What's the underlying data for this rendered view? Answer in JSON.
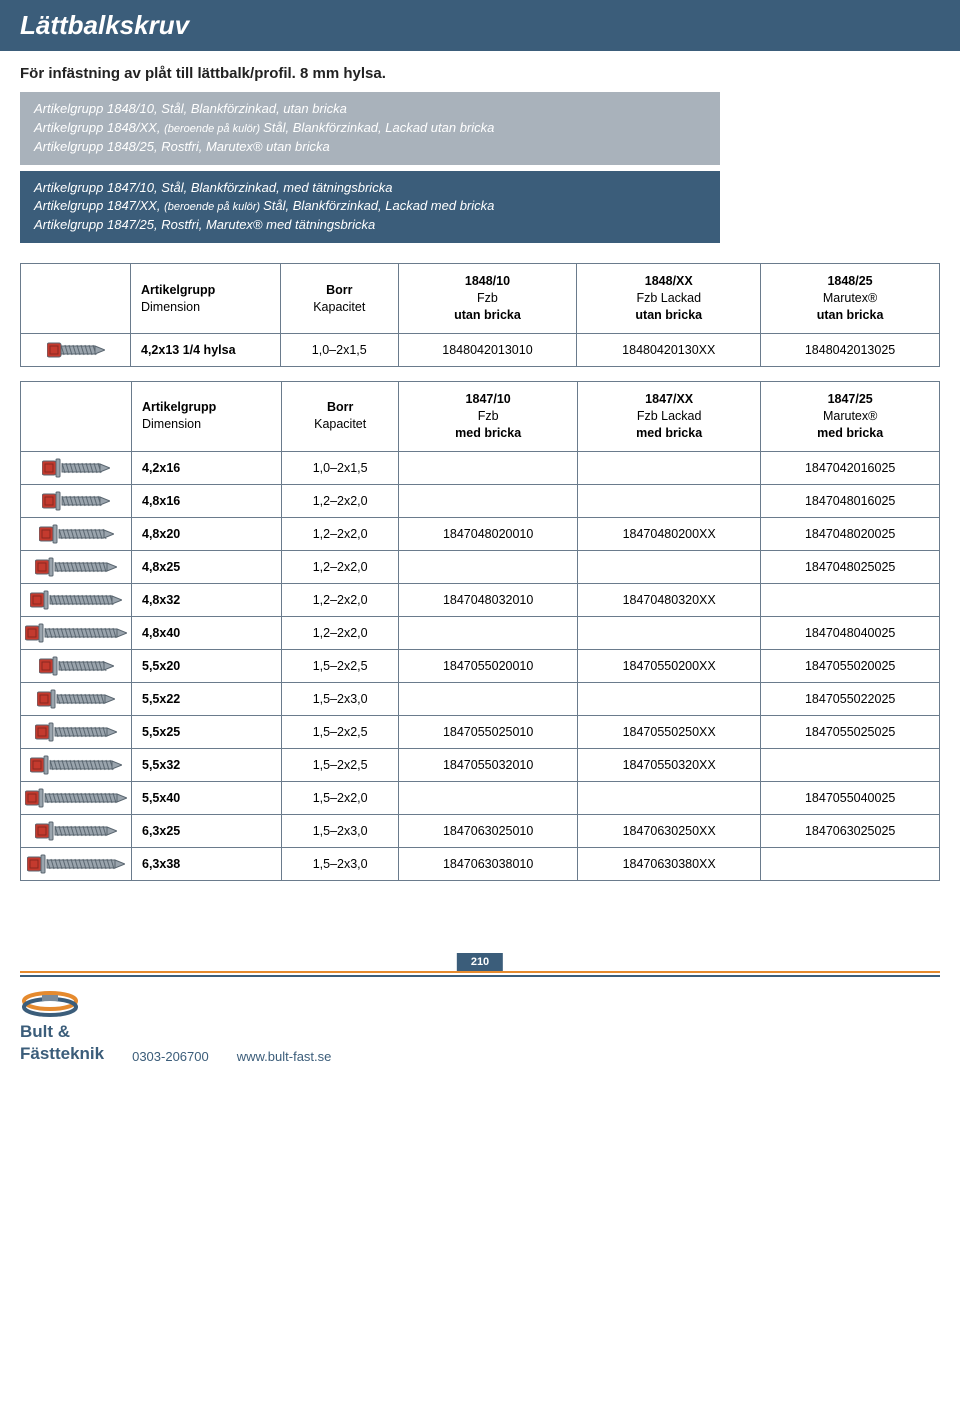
{
  "header": {
    "title": "Lättbalkskruv"
  },
  "subtitle": "För infästning av plåt till lättbalk/profil. 8 mm hylsa.",
  "box_grey": {
    "line1": "Artikelgrupp 1848/10, Stål, Blankförzinkad, utan bricka",
    "line2a": "Artikelgrupp 1848/XX, ",
    "line2b": "(beroende på kulör) ",
    "line2c": "Stål, Blankförzinkad, Lackad utan bricka",
    "line3": "Artikelgrupp 1848/25, Rostfri, Marutex® utan bricka"
  },
  "box_blue": {
    "line1": "Artikelgrupp 1847/10, Stål, Blankförzinkad, med tätningsbricka",
    "line2a": "Artikelgrupp 1847/XX, ",
    "line2b": "(beroende på kulör) ",
    "line2c": "Stål, Blankförzinkad, Lackad med bricka",
    "line3": "Artikelgrupp 1847/25, Rostfri, Marutex® med tätningsbricka"
  },
  "table1": {
    "headers": {
      "c1a": "Artikelgrupp",
      "c1b": "Dimension",
      "c2a": "Borr",
      "c2b": "Kapacitet",
      "c3a": "1848/10",
      "c3b": "Fzb",
      "c3c": "utan bricka",
      "c4a": "1848/XX",
      "c4b": "Fzb Lackad",
      "c4c": "utan bricka",
      "c5a": "1848/25",
      "c5b": "Marutex®",
      "c5c": "utan bricka"
    },
    "rows": [
      {
        "screw_len": 44,
        "washer": false,
        "dim": "4,2x13 1/4 hylsa",
        "cap": "1,0–2x1,5",
        "a": "1848042013010",
        "b": "18480420130XX",
        "c": "1848042013025"
      }
    ]
  },
  "table2": {
    "headers": {
      "c1a": "Artikelgrupp",
      "c1b": "Dimension",
      "c2a": "Borr",
      "c2b": "Kapacitet",
      "c3a": "1847/10",
      "c3b": "Fzb",
      "c3c": "med bricka",
      "c4a": "1847/XX",
      "c4b": "Fzb Lackad",
      "c4c": "med bricka",
      "c5a": "1847/25",
      "c5b": "Marutex®",
      "c5c": "med bricka"
    },
    "rows": [
      {
        "screw_len": 48,
        "washer": true,
        "dim": "4,2x16",
        "cap": "1,0–2x1,5",
        "a": "",
        "b": "",
        "c": "1847042016025"
      },
      {
        "screw_len": 48,
        "washer": true,
        "dim": "4,8x16",
        "cap": "1,2–2x2,0",
        "a": "",
        "b": "",
        "c": "1847048016025"
      },
      {
        "screw_len": 55,
        "washer": true,
        "dim": "4,8x20",
        "cap": "1,2–2x2,0",
        "a": "1847048020010",
        "b": "18470480200XX",
        "c": "1847048020025"
      },
      {
        "screw_len": 62,
        "washer": true,
        "dim": "4,8x25",
        "cap": "1,2–2x2,0",
        "a": "",
        "b": "",
        "c": "1847048025025"
      },
      {
        "screw_len": 72,
        "washer": true,
        "dim": "4,8x32",
        "cap": "1,2–2x2,0",
        "a": "1847048032010",
        "b": "18470480320XX",
        "c": ""
      },
      {
        "screw_len": 82,
        "washer": true,
        "dim": "4,8x40",
        "cap": "1,2–2x2,0",
        "a": "",
        "b": "",
        "c": "1847048040025"
      },
      {
        "screw_len": 55,
        "washer": true,
        "dim": "5,5x20",
        "cap": "1,5–2x2,5",
        "a": "1847055020010",
        "b": "18470550200XX",
        "c": "1847055020025"
      },
      {
        "screw_len": 58,
        "washer": true,
        "dim": "5,5x22",
        "cap": "1,5–2x3,0",
        "a": "",
        "b": "",
        "c": "1847055022025"
      },
      {
        "screw_len": 62,
        "washer": true,
        "dim": "5,5x25",
        "cap": "1,5–2x2,5",
        "a": "1847055025010",
        "b": "18470550250XX",
        "c": "1847055025025"
      },
      {
        "screw_len": 72,
        "washer": true,
        "dim": "5,5x32",
        "cap": "1,5–2x2,5",
        "a": "1847055032010",
        "b": "18470550320XX",
        "c": ""
      },
      {
        "screw_len": 82,
        "washer": true,
        "dim": "5,5x40",
        "cap": "1,5–2x2,0",
        "a": "",
        "b": "",
        "c": "1847055040025"
      },
      {
        "screw_len": 62,
        "washer": true,
        "dim": "6,3x25",
        "cap": "1,5–2x3,0",
        "a": "1847063025010",
        "b": "18470630250XX",
        "c": "1847063025025"
      },
      {
        "screw_len": 78,
        "washer": true,
        "dim": "6,3x38",
        "cap": "1,5–2x3,0",
        "a": "1847063038010",
        "b": "18470630380XX",
        "c": ""
      }
    ]
  },
  "colors": {
    "header_bg": "#3b5d7a",
    "grey_box": "#a9b2bb",
    "screw_head": "#c43a2e",
    "screw_body": "#9aa4ad",
    "screw_outline": "#5a6670",
    "border": "#6a7b8c",
    "orange": "#e58a2e"
  },
  "footer": {
    "page": "210",
    "brand1": "Bult &",
    "brand2": "Fästteknik",
    "phone": "0303-206700",
    "url": "www.bult-fast.se"
  }
}
